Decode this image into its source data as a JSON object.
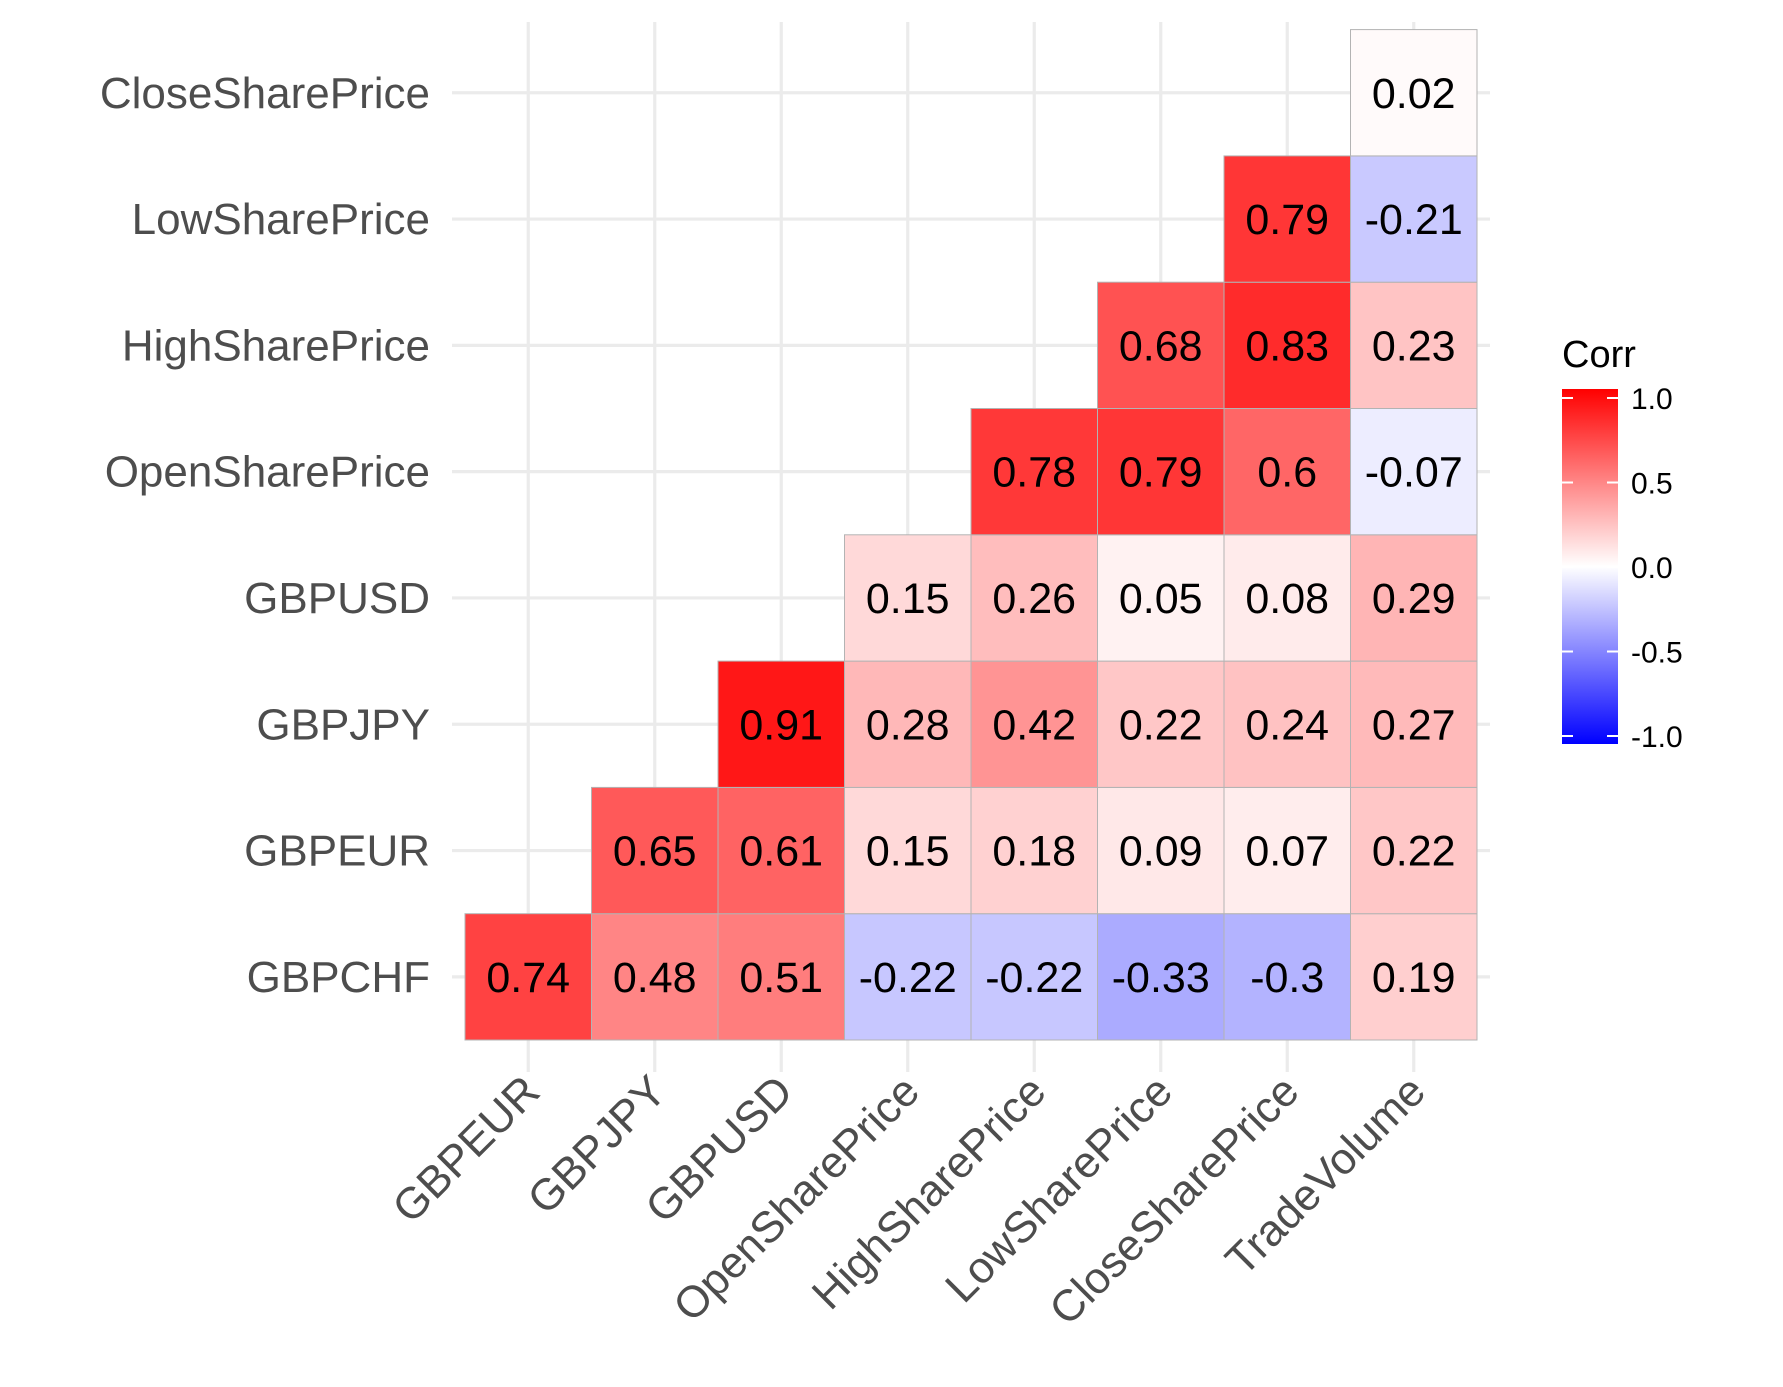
{
  "chart_data": {
    "type": "heatmap",
    "title": "",
    "xlabel": "",
    "ylabel": "",
    "x_categories": [
      "GBPEUR",
      "GBPJPY",
      "GBPUSD",
      "OpenSharePrice",
      "HighSharePrice",
      "LowSharePrice",
      "CloseSharePrice",
      "TradeVolume"
    ],
    "y_categories": [
      "GBPCHF",
      "GBPEUR",
      "GBPJPY",
      "GBPUSD",
      "OpenSharePrice",
      "HighSharePrice",
      "LowSharePrice",
      "CloseSharePrice"
    ],
    "values": [
      [
        0.74,
        0.48,
        0.51,
        -0.22,
        -0.22,
        -0.33,
        -0.3,
        0.19
      ],
      [
        null,
        0.65,
        0.61,
        0.15,
        0.18,
        0.09,
        0.07,
        0.22
      ],
      [
        null,
        null,
        0.91,
        0.28,
        0.42,
        0.22,
        0.24,
        0.27
      ],
      [
        null,
        null,
        null,
        0.15,
        0.26,
        0.05,
        0.08,
        0.29
      ],
      [
        null,
        null,
        null,
        null,
        0.78,
        0.79,
        0.6,
        -0.07
      ],
      [
        null,
        null,
        null,
        null,
        null,
        0.68,
        0.83,
        0.23
      ],
      [
        null,
        null,
        null,
        null,
        null,
        null,
        0.79,
        -0.21
      ],
      [
        null,
        null,
        null,
        null,
        null,
        null,
        null,
        0.02
      ]
    ],
    "color_scale": {
      "low": "#0000ff",
      "mid": "#ffffff",
      "high": "#ff0000",
      "limits": [
        -1,
        1
      ]
    },
    "legend": {
      "title": "Corr",
      "position": "right",
      "ticks": [
        1.0,
        0.5,
        0.0,
        -0.5,
        -1.0
      ],
      "tick_labels": [
        "1.0",
        "0.5",
        "0.0",
        "-0.5",
        "-1.0"
      ]
    },
    "grid": true
  }
}
